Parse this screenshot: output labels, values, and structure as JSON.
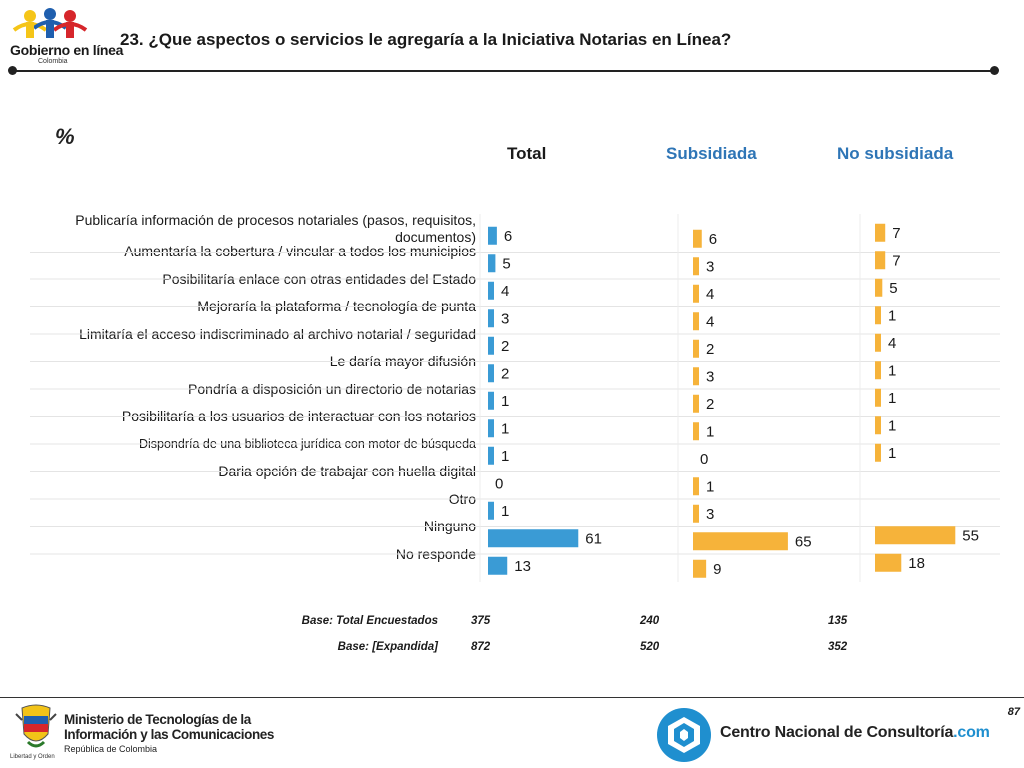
{
  "header": {
    "logo_text": "Gobierno en línea",
    "logo_sub": "Colombia",
    "title": "23. ¿Que aspectos o servicios le agregaría a la Iniciativa Notarias en Línea?"
  },
  "unit_label": "%",
  "columns": [
    {
      "label": "Total",
      "color": "#1a1a1a"
    },
    {
      "label": "Subsidiada",
      "color": "#2e75b6"
    },
    {
      "label": "No subsidiada",
      "color": "#2e75b6"
    }
  ],
  "colors": {
    "total_bar": "#3a9bd5",
    "sub_bar": "#f6b33a",
    "nosub_bar": "#f6b33a"
  },
  "chart_data": {
    "type": "bar",
    "orientation": "horizontal",
    "categories": [
      "Publicaría información de procesos notariales (pasos, requisitos, documentos)",
      "Aumentaría la cobertura / vincular a todos los municipios",
      "Posibilitaría enlace con otras entidades del Estado",
      "Mejoraría la plataforma / tecnología de punta",
      "Limitaría el acceso indiscriminado al archivo notarial / seguridad",
      "Le daría mayor difusión",
      "Pondría a disposición un directorio de notarias",
      "Posibilitaría a los usuarios de interactuar con los notarios",
      "Dispondría de una biblioteca jurídica con motor de búsqueda",
      "Daria opción de trabajar con huella digital",
      "Otro",
      "Ninguno",
      "No responde"
    ],
    "series": [
      {
        "name": "Total",
        "values": [
          6,
          5,
          4,
          3,
          2,
          2,
          1,
          1,
          1,
          0,
          1,
          61,
          13
        ]
      },
      {
        "name": "Subsidiada",
        "values": [
          6,
          3,
          4,
          4,
          2,
          3,
          2,
          1,
          0,
          1,
          3,
          65,
          9
        ]
      },
      {
        "name": "No subsidiada",
        "values": [
          7,
          7,
          5,
          1,
          4,
          1,
          1,
          1,
          1,
          null,
          null,
          55,
          18
        ]
      }
    ]
  },
  "base": {
    "rows": [
      {
        "label": "Base: Total Encuestados",
        "values": [
          "375",
          "240",
          "135"
        ]
      },
      {
        "label": "Base: [Expandida]",
        "values": [
          "872",
          "520",
          "352"
        ]
      }
    ]
  },
  "footer": {
    "page_number": "87",
    "ministry_line1": "Ministerio de Tecnologías de la",
    "ministry_line2": "Información y las Comunicaciones",
    "ministry_line3": "República de Colombia",
    "shield_caption": "Libertad y Orden",
    "cnc_text": "Centro Nacional de Consultoría",
    "cnc_suffix": ".com"
  }
}
